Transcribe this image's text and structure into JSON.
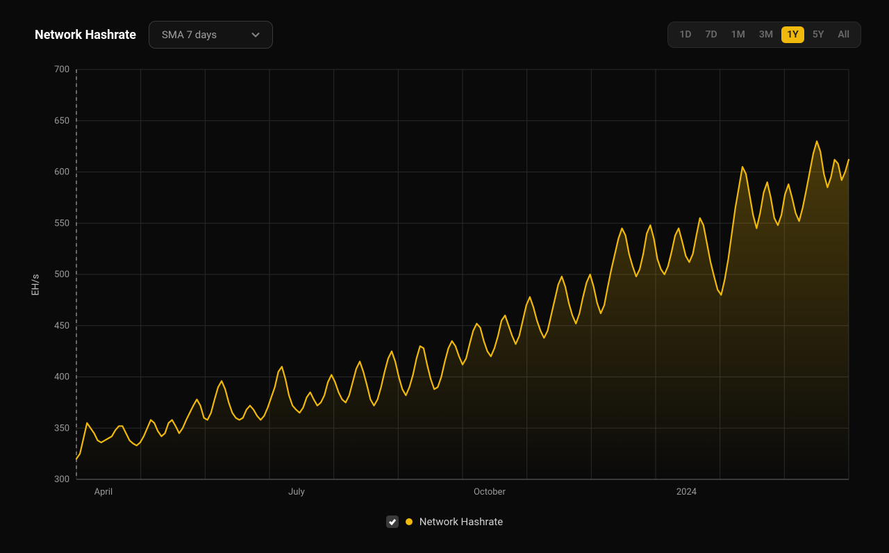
{
  "header": {
    "title": "Network Hashrate",
    "dropdown_label": "SMA 7 days",
    "range_options": [
      "1D",
      "7D",
      "1M",
      "3M",
      "1Y",
      "5Y",
      "All"
    ],
    "range_selected": "1Y"
  },
  "legend": {
    "label": "Network Hashrate",
    "dot_color": "#f0b90b",
    "checked": true
  },
  "chart": {
    "type": "area-line",
    "y_axis_label": "EH/s",
    "ylim": [
      300,
      700
    ],
    "ytick_step": 50,
    "x_ticks": [
      {
        "pos": 0.035,
        "label": "April"
      },
      {
        "pos": 0.285,
        "label": "July"
      },
      {
        "pos": 0.535,
        "label": "October"
      },
      {
        "pos": 0.79,
        "label": "2024"
      }
    ],
    "grid_x_divisions": 12,
    "background_color": "#0a0a0a",
    "grid_color": "#2a2a2a",
    "axis_color": "#4a4a4a",
    "line_color": "#f0b90b",
    "line_width": 2.2,
    "fill_gradient_top": "rgba(240,185,11,0.28)",
    "fill_gradient_bottom": "rgba(240,185,11,0.0)",
    "dashed_reference_x": 0.0,
    "series": [
      320,
      325,
      340,
      355,
      350,
      345,
      338,
      336,
      338,
      340,
      342,
      348,
      352,
      352,
      345,
      338,
      335,
      333,
      336,
      342,
      350,
      358,
      355,
      347,
      342,
      345,
      355,
      358,
      352,
      345,
      350,
      358,
      365,
      372,
      378,
      372,
      360,
      358,
      365,
      378,
      390,
      396,
      388,
      375,
      365,
      360,
      358,
      360,
      368,
      372,
      368,
      362,
      358,
      362,
      370,
      380,
      390,
      405,
      410,
      398,
      382,
      372,
      368,
      365,
      370,
      380,
      385,
      378,
      372,
      375,
      382,
      395,
      402,
      395,
      385,
      378,
      375,
      382,
      395,
      408,
      415,
      405,
      392,
      378,
      372,
      378,
      390,
      405,
      418,
      425,
      415,
      400,
      388,
      382,
      390,
      402,
      418,
      430,
      428,
      412,
      398,
      388,
      390,
      400,
      415,
      428,
      435,
      430,
      420,
      412,
      418,
      432,
      445,
      452,
      448,
      435,
      425,
      420,
      428,
      440,
      455,
      460,
      450,
      440,
      432,
      440,
      455,
      470,
      478,
      468,
      455,
      445,
      438,
      445,
      460,
      475,
      490,
      498,
      488,
      472,
      460,
      452,
      462,
      478,
      492,
      500,
      488,
      472,
      462,
      470,
      488,
      505,
      520,
      535,
      545,
      538,
      520,
      508,
      498,
      505,
      520,
      540,
      548,
      535,
      515,
      505,
      500,
      508,
      522,
      538,
      545,
      532,
      518,
      512,
      520,
      538,
      555,
      548,
      530,
      512,
      498,
      485,
      480,
      495,
      515,
      540,
      565,
      585,
      605,
      598,
      578,
      558,
      545,
      560,
      580,
      590,
      575,
      555,
      548,
      558,
      578,
      588,
      575,
      560,
      552,
      565,
      582,
      600,
      618,
      630,
      620,
      598,
      585,
      595,
      612,
      608,
      592,
      600,
      612
    ],
    "tick_font_size": 13,
    "tick_color": "#9a9a9a"
  }
}
